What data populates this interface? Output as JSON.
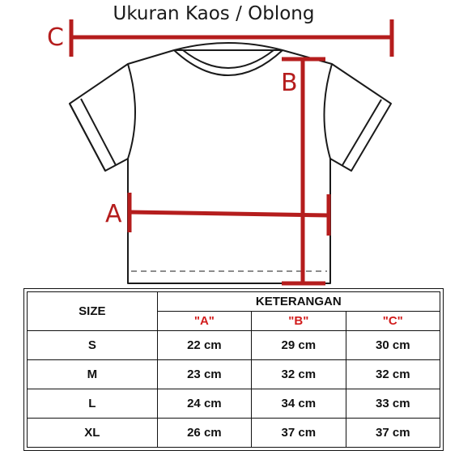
{
  "title": "Ukuran Kaos / Oblong",
  "dimension_labels": {
    "a": "A",
    "b": "B",
    "c": "C"
  },
  "colors": {
    "accent_red": "#b51d1d",
    "header_red": "#d21c1c",
    "line": "#1a1a1a"
  },
  "table": {
    "size_header": "SIZE",
    "group_header": "KETERANGAN",
    "columns": [
      "\"A\"",
      "\"B\"",
      "\"C\""
    ],
    "rows": [
      {
        "size": "S",
        "a": "22 cm",
        "b": "29 cm",
        "c": "30 cm"
      },
      {
        "size": "M",
        "a": "23 cm",
        "b": "32 cm",
        "c": "32 cm"
      },
      {
        "size": "L",
        "a": "24 cm",
        "b": "34 cm",
        "c": "33 cm"
      },
      {
        "size": "XL",
        "a": "26 cm",
        "b": "37 cm",
        "c": "37 cm"
      }
    ]
  }
}
